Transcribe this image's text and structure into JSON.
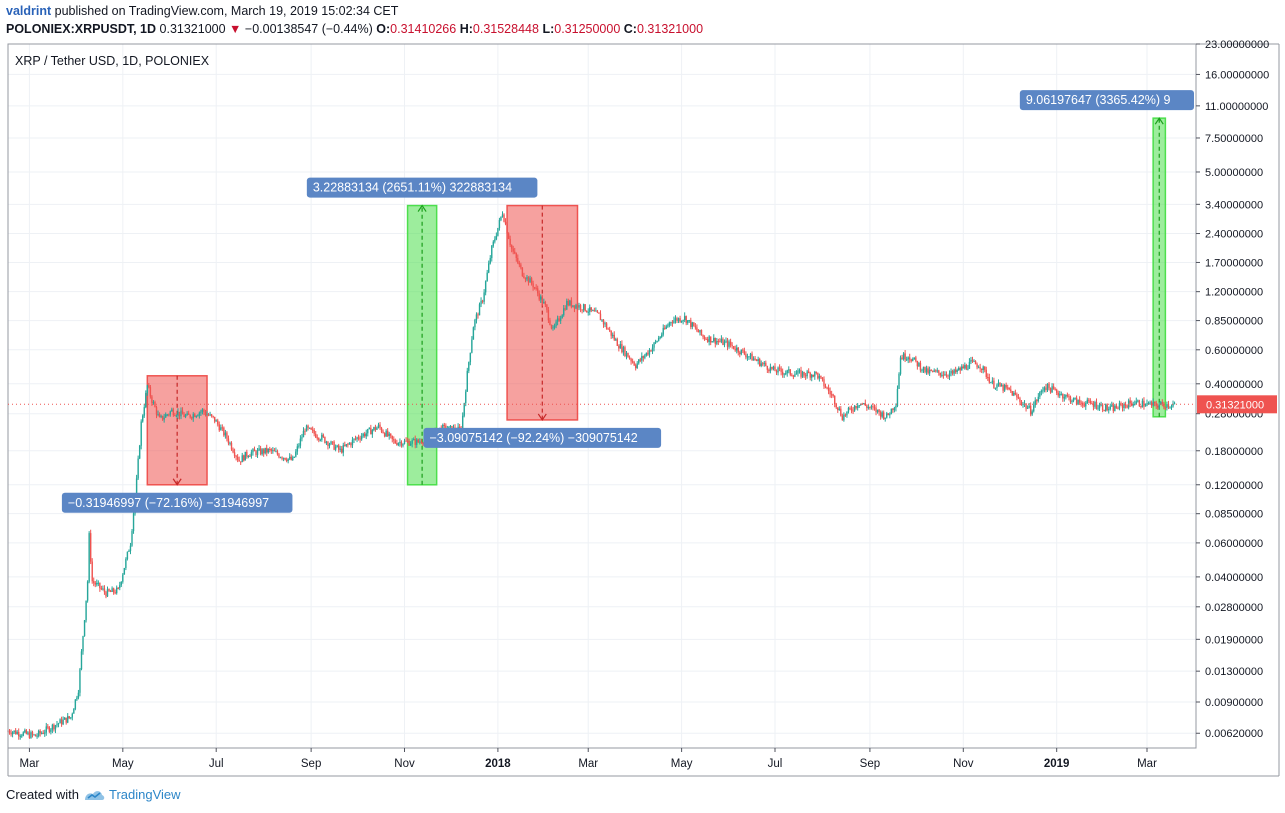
{
  "header": {
    "author": "valdrint",
    "published_text": "published on TradingView.com, March 19, 2019 15:02:34 CET",
    "symbol": "POLONIEX:XRPUSDT, 1D",
    "last_price": "0.31321000",
    "change_arrow": "▼",
    "change": "−0.00138547 (−0.44%)",
    "o_label": "O:",
    "o_value": "0.31410266",
    "h_label": "H:",
    "h_value": "0.31528448",
    "l_label": "L:",
    "l_value": "0.31250000",
    "c_label": "C:",
    "c_value": "0.31321000"
  },
  "footer": {
    "created_with": "Created with",
    "brand": "TradingView"
  },
  "colors": {
    "up": "#26a69a",
    "down": "#ef5350",
    "grid": "#eef1f5",
    "measure_green": "#4ddf4d",
    "measure_red": "#ef5350",
    "label_bg": "#5b86c5",
    "price_tag": "#ef5350"
  },
  "chart_data": {
    "type": "candlestick",
    "title": "XRP / Tether USD, 1D, POLONIEX",
    "y_scale": "log",
    "ylim": [
      0.0052,
      23.0
    ],
    "xlim": [
      "2017-02-15",
      "2019-04-02"
    ],
    "y_ticks": [
      "23.00000000",
      "16.00000000",
      "11.00000000",
      "7.50000000",
      "5.00000000",
      "3.40000000",
      "2.40000000",
      "1.70000000",
      "1.20000000",
      "0.85000000",
      "0.60000000",
      "0.40000000",
      "0.28000000",
      "0.18000000",
      "0.12000000",
      "0.08500000",
      "0.06000000",
      "0.04000000",
      "0.02800000",
      "0.01900000",
      "0.01300000",
      "0.00900000",
      "0.00620000"
    ],
    "x_ticks": [
      {
        "date": "2017-03-01",
        "label": "Mar",
        "bold": false
      },
      {
        "date": "2017-05-01",
        "label": "May",
        "bold": false
      },
      {
        "date": "2017-07-01",
        "label": "Jul",
        "bold": false
      },
      {
        "date": "2017-09-01",
        "label": "Sep",
        "bold": false
      },
      {
        "date": "2017-11-01",
        "label": "Nov",
        "bold": false
      },
      {
        "date": "2018-01-01",
        "label": "2018",
        "bold": true
      },
      {
        "date": "2018-03-01",
        "label": "Mar",
        "bold": false
      },
      {
        "date": "2018-05-01",
        "label": "May",
        "bold": false
      },
      {
        "date": "2018-07-01",
        "label": "Jul",
        "bold": false
      },
      {
        "date": "2018-09-01",
        "label": "Sep",
        "bold": false
      },
      {
        "date": "2018-11-01",
        "label": "Nov",
        "bold": false
      },
      {
        "date": "2019-01-01",
        "label": "2019",
        "bold": true
      },
      {
        "date": "2019-03-01",
        "label": "Mar",
        "bold": false
      }
    ],
    "price_series": [
      [
        "2017-02-15",
        0.0064
      ],
      [
        "2017-03-05",
        0.006
      ],
      [
        "2017-03-20",
        0.007
      ],
      [
        "2017-03-28",
        0.0075
      ],
      [
        "2017-04-02",
        0.0105
      ],
      [
        "2017-04-05",
        0.02
      ],
      [
        "2017-04-08",
        0.038
      ],
      [
        "2017-04-09",
        0.065
      ],
      [
        "2017-04-11",
        0.038
      ],
      [
        "2017-04-20",
        0.033
      ],
      [
        "2017-04-28",
        0.034
      ],
      [
        "2017-05-06",
        0.06
      ],
      [
        "2017-05-10",
        0.125
      ],
      [
        "2017-05-13",
        0.25
      ],
      [
        "2017-05-17",
        0.39
      ],
      [
        "2017-05-20",
        0.33
      ],
      [
        "2017-05-25",
        0.26
      ],
      [
        "2017-06-02",
        0.29
      ],
      [
        "2017-06-12",
        0.27
      ],
      [
        "2017-06-22",
        0.29
      ],
      [
        "2017-06-30",
        0.26
      ],
      [
        "2017-07-08",
        0.21
      ],
      [
        "2017-07-16",
        0.16
      ],
      [
        "2017-07-22",
        0.175
      ],
      [
        "2017-08-05",
        0.18
      ],
      [
        "2017-08-20",
        0.16
      ],
      [
        "2017-08-28",
        0.235
      ],
      [
        "2017-09-08",
        0.21
      ],
      [
        "2017-09-20",
        0.18
      ],
      [
        "2017-10-01",
        0.21
      ],
      [
        "2017-10-15",
        0.24
      ],
      [
        "2017-10-25",
        0.2
      ],
      [
        "2017-11-10",
        0.2
      ],
      [
        "2017-11-25",
        0.235
      ],
      [
        "2017-12-08",
        0.23
      ],
      [
        "2017-12-12",
        0.45
      ],
      [
        "2017-12-16",
        0.8
      ],
      [
        "2017-12-22",
        1.1
      ],
      [
        "2017-12-28",
        2.0
      ],
      [
        "2018-01-04",
        3.1
      ],
      [
        "2018-01-10",
        2.0
      ],
      [
        "2018-01-17",
        1.5
      ],
      [
        "2018-01-24",
        1.3
      ],
      [
        "2018-02-01",
        1.0
      ],
      [
        "2018-02-06",
        0.75
      ],
      [
        "2018-02-15",
        1.05
      ],
      [
        "2018-02-25",
        1.0
      ],
      [
        "2018-03-08",
        0.9
      ],
      [
        "2018-03-20",
        0.65
      ],
      [
        "2018-04-01",
        0.5
      ],
      [
        "2018-04-12",
        0.62
      ],
      [
        "2018-04-24",
        0.85
      ],
      [
        "2018-05-03",
        0.88
      ],
      [
        "2018-05-15",
        0.7
      ],
      [
        "2018-06-01",
        0.64
      ],
      [
        "2018-06-15",
        0.55
      ],
      [
        "2018-06-30",
        0.47
      ],
      [
        "2018-07-15",
        0.45
      ],
      [
        "2018-07-28",
        0.45
      ],
      [
        "2018-08-08",
        0.34
      ],
      [
        "2018-08-14",
        0.27
      ],
      [
        "2018-08-25",
        0.32
      ],
      [
        "2018-09-05",
        0.29
      ],
      [
        "2018-09-12",
        0.27
      ],
      [
        "2018-09-18",
        0.32
      ],
      [
        "2018-09-21",
        0.55
      ],
      [
        "2018-09-26",
        0.56
      ],
      [
        "2018-10-08",
        0.46
      ],
      [
        "2018-10-25",
        0.45
      ],
      [
        "2018-11-06",
        0.51
      ],
      [
        "2018-11-12",
        0.5
      ],
      [
        "2018-11-20",
        0.4
      ],
      [
        "2018-12-01",
        0.37
      ],
      [
        "2018-12-15",
        0.29
      ],
      [
        "2018-12-24",
        0.39
      ],
      [
        "2019-01-05",
        0.35
      ],
      [
        "2019-01-15",
        0.32
      ],
      [
        "2019-01-25",
        0.315
      ],
      [
        "2019-02-05",
        0.295
      ],
      [
        "2019-02-20",
        0.32
      ],
      [
        "2019-03-05",
        0.31
      ],
      [
        "2019-03-19",
        0.3132
      ]
    ],
    "measurements": [
      {
        "type": "rise",
        "start": "2017-11-03",
        "end": "2017-11-22",
        "from": 0.12,
        "to": 3.35,
        "label": "3.22883134 (2651.11%) 322883134"
      },
      {
        "type": "fall",
        "start": "2017-05-17",
        "end": "2017-06-25",
        "from": 0.44,
        "to": 0.12,
        "label": "−0.31946997 (−72.16%) −31946997"
      },
      {
        "type": "fall",
        "start": "2018-01-07",
        "end": "2018-02-22",
        "from": 3.35,
        "to": 0.26,
        "label": "−3.09075142 (−92.24%) −309075142"
      },
      {
        "type": "rise",
        "start": "2019-03-05",
        "end": "2019-03-13",
        "from": 0.27,
        "to": 9.5,
        "label": "9.06197647 (3365.42%) 9"
      }
    ],
    "last_price_tag": "0.31321000",
    "last_price_value": 0.31321
  }
}
